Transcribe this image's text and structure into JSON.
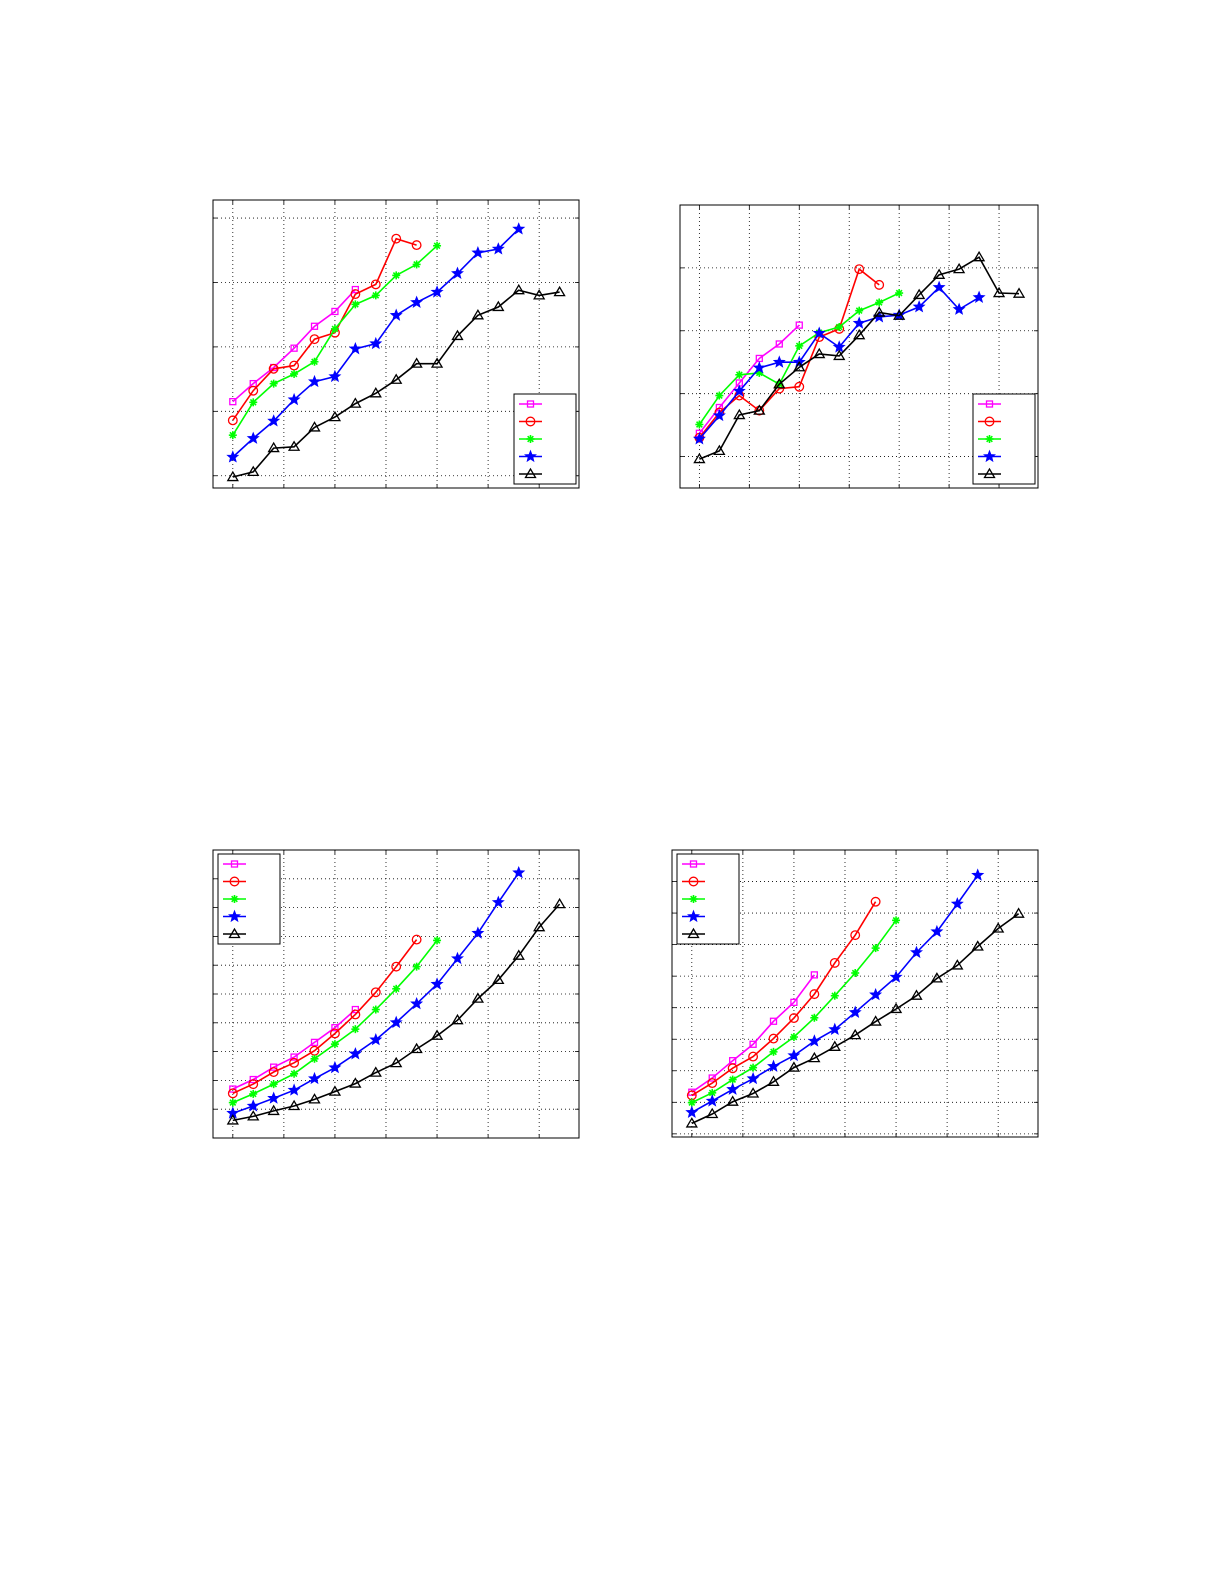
{
  "styles": {
    "colors": [
      "#ff00ff",
      "#ff0000",
      "#00ff00",
      "#0000ff",
      "#000000"
    ],
    "markers": [
      "square",
      "circle",
      "asterisk",
      "star",
      "triangle"
    ]
  },
  "chart_data": [
    {
      "type": "line",
      "title": "",
      "xlabel": "",
      "ylabel": "",
      "grid": true,
      "legend": "bottom-right",
      "xlim": [
        0.03,
        17.95
      ],
      "ylim": [
        -0.19,
        4.28
      ],
      "xgrid": [
        1,
        3.5,
        6,
        8.5,
        11,
        13.5,
        16
      ],
      "ygrid": [
        0,
        1,
        2,
        3,
        4
      ],
      "series": [
        {
          "x": [
            1,
            2,
            3,
            4,
            5,
            6,
            7
          ],
          "values": [
            1.15,
            1.43,
            1.68,
            1.98,
            2.32,
            2.55,
            2.89
          ]
        },
        {
          "x": [
            1,
            2,
            3,
            4,
            5,
            6,
            7,
            8,
            9,
            10
          ],
          "values": [
            0.86,
            1.32,
            1.66,
            1.71,
            2.12,
            2.22,
            2.82,
            2.97,
            3.68,
            3.58
          ]
        },
        {
          "x": [
            1,
            2,
            3,
            4,
            5,
            6,
            7,
            8,
            9,
            10,
            11
          ],
          "values": [
            0.63,
            1.14,
            1.43,
            1.58,
            1.77,
            2.28,
            2.66,
            2.8,
            3.11,
            3.28,
            3.57
          ]
        },
        {
          "x": [
            1,
            2,
            3,
            4,
            5,
            6,
            7,
            8,
            9,
            10,
            11,
            12,
            13,
            14,
            15
          ],
          "values": [
            0.29,
            0.58,
            0.85,
            1.18,
            1.46,
            1.54,
            1.97,
            2.05,
            2.49,
            2.69,
            2.85,
            3.14,
            3.46,
            3.52,
            3.83
          ]
        },
        {
          "x": [
            1,
            2,
            3,
            4,
            5,
            6,
            7,
            8,
            9,
            10,
            11,
            12,
            13,
            14,
            15,
            16,
            17
          ],
          "values": [
            -0.02,
            0.06,
            0.43,
            0.45,
            0.75,
            0.91,
            1.12,
            1.28,
            1.49,
            1.74,
            1.74,
            2.17,
            2.49,
            2.62,
            2.88,
            2.8,
            2.85
          ]
        }
      ]
    },
    {
      "type": "line",
      "title": "",
      "xlabel": "",
      "ylabel": "",
      "grid": true,
      "legend": "bottom-right",
      "xlim": [
        0.03,
        17.95
      ],
      "ylim": [
        -0.5,
        4.0
      ],
      "xgrid": [
        1,
        3.5,
        6,
        8.5,
        11,
        13.5,
        16
      ],
      "ygrid": [
        0,
        1,
        2,
        3
      ],
      "series": [
        {
          "x": [
            1,
            2,
            3,
            4,
            5,
            6
          ],
          "values": [
            0.37,
            0.78,
            1.17,
            1.56,
            1.79,
            2.09
          ]
        },
        {
          "x": [
            1,
            2,
            3,
            4,
            5,
            6,
            7,
            8,
            9,
            10
          ],
          "values": [
            0.3,
            0.7,
            0.97,
            0.73,
            1.08,
            1.11,
            1.9,
            2.03,
            2.98,
            2.73
          ]
        },
        {
          "x": [
            1,
            2,
            3,
            4,
            5,
            6,
            7,
            8,
            9,
            10,
            11
          ],
          "values": [
            0.51,
            0.97,
            1.3,
            1.33,
            1.15,
            1.76,
            1.97,
            2.06,
            2.32,
            2.45,
            2.6
          ]
        },
        {
          "x": [
            1,
            2,
            3,
            4,
            5,
            6,
            7,
            8,
            9,
            10,
            11,
            12,
            13,
            14,
            15
          ],
          "values": [
            0.28,
            0.65,
            1.04,
            1.41,
            1.5,
            1.5,
            1.96,
            1.74,
            2.12,
            2.22,
            2.25,
            2.38,
            2.69,
            2.34,
            2.53
          ]
        },
        {
          "x": [
            1,
            2,
            3,
            4,
            5,
            6,
            7,
            8,
            9,
            10,
            11,
            12,
            13,
            14,
            15,
            16,
            17
          ],
          "values": [
            -0.04,
            0.09,
            0.66,
            0.73,
            1.15,
            1.42,
            1.63,
            1.6,
            1.93,
            2.29,
            2.24,
            2.57,
            2.89,
            2.98,
            3.17,
            2.6,
            2.59
          ]
        }
      ]
    },
    {
      "type": "line",
      "title": "",
      "xlabel": "",
      "ylabel": "",
      "grid": true,
      "legend": "top-left",
      "xlim": [
        0.03,
        17.95
      ],
      "ylim": [
        -1.0,
        9.0
      ],
      "xgrid": [
        1,
        3.5,
        6,
        8.5,
        11,
        13.5,
        16
      ],
      "ygrid": [
        0,
        1,
        2,
        3,
        4,
        5,
        6,
        7,
        8
      ],
      "series": [
        {
          "x": [
            1,
            2,
            3,
            4,
            5,
            6,
            7
          ],
          "values": [
            0.7,
            1.03,
            1.46,
            1.81,
            2.32,
            2.83,
            3.46
          ]
        },
        {
          "x": [
            1,
            2,
            3,
            4,
            5,
            6,
            7,
            8,
            9,
            10
          ],
          "values": [
            0.55,
            0.87,
            1.29,
            1.61,
            2.03,
            2.63,
            3.29,
            4.06,
            4.95,
            5.89
          ]
        },
        {
          "x": [
            1,
            2,
            3,
            4,
            5,
            6,
            7,
            8,
            9,
            10,
            11
          ],
          "values": [
            0.23,
            0.53,
            0.87,
            1.23,
            1.75,
            2.26,
            2.78,
            3.46,
            4.18,
            4.95,
            5.86
          ]
        },
        {
          "x": [
            1,
            2,
            3,
            4,
            5,
            6,
            7,
            8,
            9,
            10,
            11,
            12,
            13,
            14,
            15
          ],
          "values": [
            -0.14,
            0.11,
            0.38,
            0.66,
            1.06,
            1.44,
            1.92,
            2.41,
            3.01,
            3.66,
            4.34,
            5.23,
            6.11,
            7.18,
            8.21
          ]
        },
        {
          "x": [
            1,
            2,
            3,
            4,
            5,
            6,
            7,
            8,
            9,
            10,
            11,
            12,
            13,
            14,
            15,
            16,
            17
          ],
          "values": [
            -0.39,
            -0.25,
            -0.06,
            0.11,
            0.34,
            0.61,
            0.89,
            1.27,
            1.6,
            2.09,
            2.55,
            3.09,
            3.84,
            4.49,
            5.33,
            6.32,
            7.12
          ]
        }
      ]
    },
    {
      "type": "line",
      "title": "",
      "xlabel": "",
      "ylabel": "",
      "grid": true,
      "legend": "top-left",
      "xlim": [
        0.03,
        17.95
      ],
      "ylim": [
        -0.1,
        9.0
      ],
      "xgrid": [
        1,
        3.5,
        6,
        8.5,
        11,
        13.5,
        16
      ],
      "ygrid": [
        0,
        1,
        2,
        3,
        4,
        5,
        6,
        7,
        8
      ],
      "series": [
        {
          "x": [
            1,
            2,
            3,
            4,
            5,
            6,
            7
          ],
          "values": [
            1.32,
            1.77,
            2.32,
            2.84,
            3.57,
            4.17,
            5.04
          ]
        },
        {
          "x": [
            1,
            2,
            3,
            4,
            5,
            6,
            7,
            8,
            9,
            10
          ],
          "values": [
            1.22,
            1.61,
            2.08,
            2.45,
            3.02,
            3.67,
            4.43,
            5.42,
            6.3,
            7.36
          ]
        },
        {
          "x": [
            1,
            2,
            3,
            4,
            5,
            6,
            7,
            8,
            9,
            10,
            11
          ],
          "values": [
            0.99,
            1.3,
            1.72,
            2.1,
            2.6,
            3.07,
            3.68,
            4.38,
            5.1,
            5.89,
            6.77
          ]
        },
        {
          "x": [
            1,
            2,
            3,
            4,
            5,
            6,
            7,
            8,
            9,
            10,
            11,
            12,
            13,
            14,
            15
          ],
          "values": [
            0.68,
            1.04,
            1.41,
            1.75,
            2.14,
            2.48,
            2.94,
            3.31,
            3.85,
            4.41,
            4.97,
            5.75,
            6.41,
            7.29,
            8.2
          ]
        },
        {
          "x": [
            1,
            2,
            3,
            4,
            5,
            6,
            7,
            8,
            9,
            10,
            11,
            12,
            13,
            14,
            15,
            16,
            17
          ],
          "values": [
            0.33,
            0.63,
            1.02,
            1.28,
            1.65,
            2.1,
            2.4,
            2.76,
            3.13,
            3.56,
            3.96,
            4.38,
            4.93,
            5.34,
            5.94,
            6.51,
            6.98
          ]
        }
      ]
    }
  ]
}
